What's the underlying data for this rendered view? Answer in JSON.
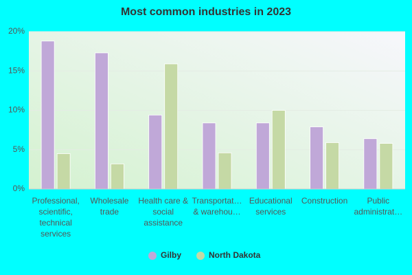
{
  "chart_data": {
    "type": "bar",
    "title": "Most common industries in 2023",
    "categories": [
      "Professional, scientific, technical services",
      "Wholesale trade",
      "Health care & social assistance",
      "Transportat… & warehou…",
      "Educational services",
      "Construction",
      "Public administrat…"
    ],
    "series": [
      {
        "name": "Gilby",
        "color": "#c0a8d8",
        "values": [
          18.8,
          17.3,
          9.4,
          8.4,
          8.4,
          7.9,
          6.4
        ]
      },
      {
        "name": "North Dakota",
        "color": "#c5d9a5",
        "values": [
          4.5,
          3.2,
          15.9,
          4.6,
          10.0,
          5.9,
          5.8
        ]
      }
    ],
    "ylim": [
      0,
      20
    ],
    "yticks": [
      {
        "value": 0,
        "label": "0%"
      },
      {
        "value": 5,
        "label": "5%"
      },
      {
        "value": 10,
        "label": "10%"
      },
      {
        "value": 15,
        "label": "15%"
      },
      {
        "value": 20,
        "label": "20%"
      }
    ],
    "grid": true
  }
}
